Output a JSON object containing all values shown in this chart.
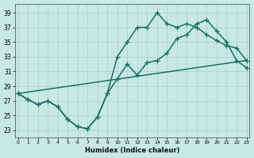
{
  "xlabel": "Humidex (Indice chaleur)",
  "bg_color": "#c8e8e4",
  "grid_color": "#a8d4d0",
  "line_color": "#1a6e64",
  "x_ticks": [
    0,
    1,
    2,
    3,
    4,
    5,
    6,
    7,
    8,
    9,
    10,
    11,
    12,
    13,
    14,
    15,
    16,
    17,
    18,
    19,
    20,
    21,
    22,
    23
  ],
  "y_ticks": [
    23,
    25,
    27,
    29,
    31,
    33,
    35,
    37,
    39
  ],
  "xlim": [
    -0.3,
    23.3
  ],
  "ylim": [
    22.0,
    40.2
  ],
  "series1_x": [
    0,
    1,
    2,
    3,
    4,
    5,
    6,
    7,
    8,
    9,
    10,
    11,
    12,
    13,
    14,
    15,
    16,
    17,
    18,
    19,
    20,
    21,
    22,
    23
  ],
  "series1_y": [
    28.0,
    27.2,
    26.5,
    27.0,
    26.2,
    24.5,
    23.5,
    23.2,
    24.8,
    28.0,
    33.0,
    35.0,
    37.0,
    37.0,
    39.0,
    37.5,
    37.0,
    37.5,
    37.0,
    36.0,
    35.2,
    34.5,
    34.2,
    32.5
  ],
  "series2_x": [
    0,
    1,
    2,
    3,
    4,
    5,
    6,
    7,
    8,
    9,
    10,
    11,
    12,
    13,
    14,
    15,
    16,
    17,
    18,
    19,
    20,
    21,
    22,
    23
  ],
  "series2_y": [
    28.0,
    27.2,
    26.5,
    27.0,
    26.2,
    24.5,
    23.5,
    23.2,
    24.8,
    28.0,
    30.0,
    32.0,
    30.5,
    32.2,
    32.5,
    33.5,
    35.5,
    36.0,
    37.5,
    38.0,
    36.5,
    35.0,
    32.5,
    31.5
  ],
  "series3_x": [
    0,
    23
  ],
  "series3_y": [
    28.0,
    32.5
  ],
  "lw": 1.1,
  "ms": 4
}
